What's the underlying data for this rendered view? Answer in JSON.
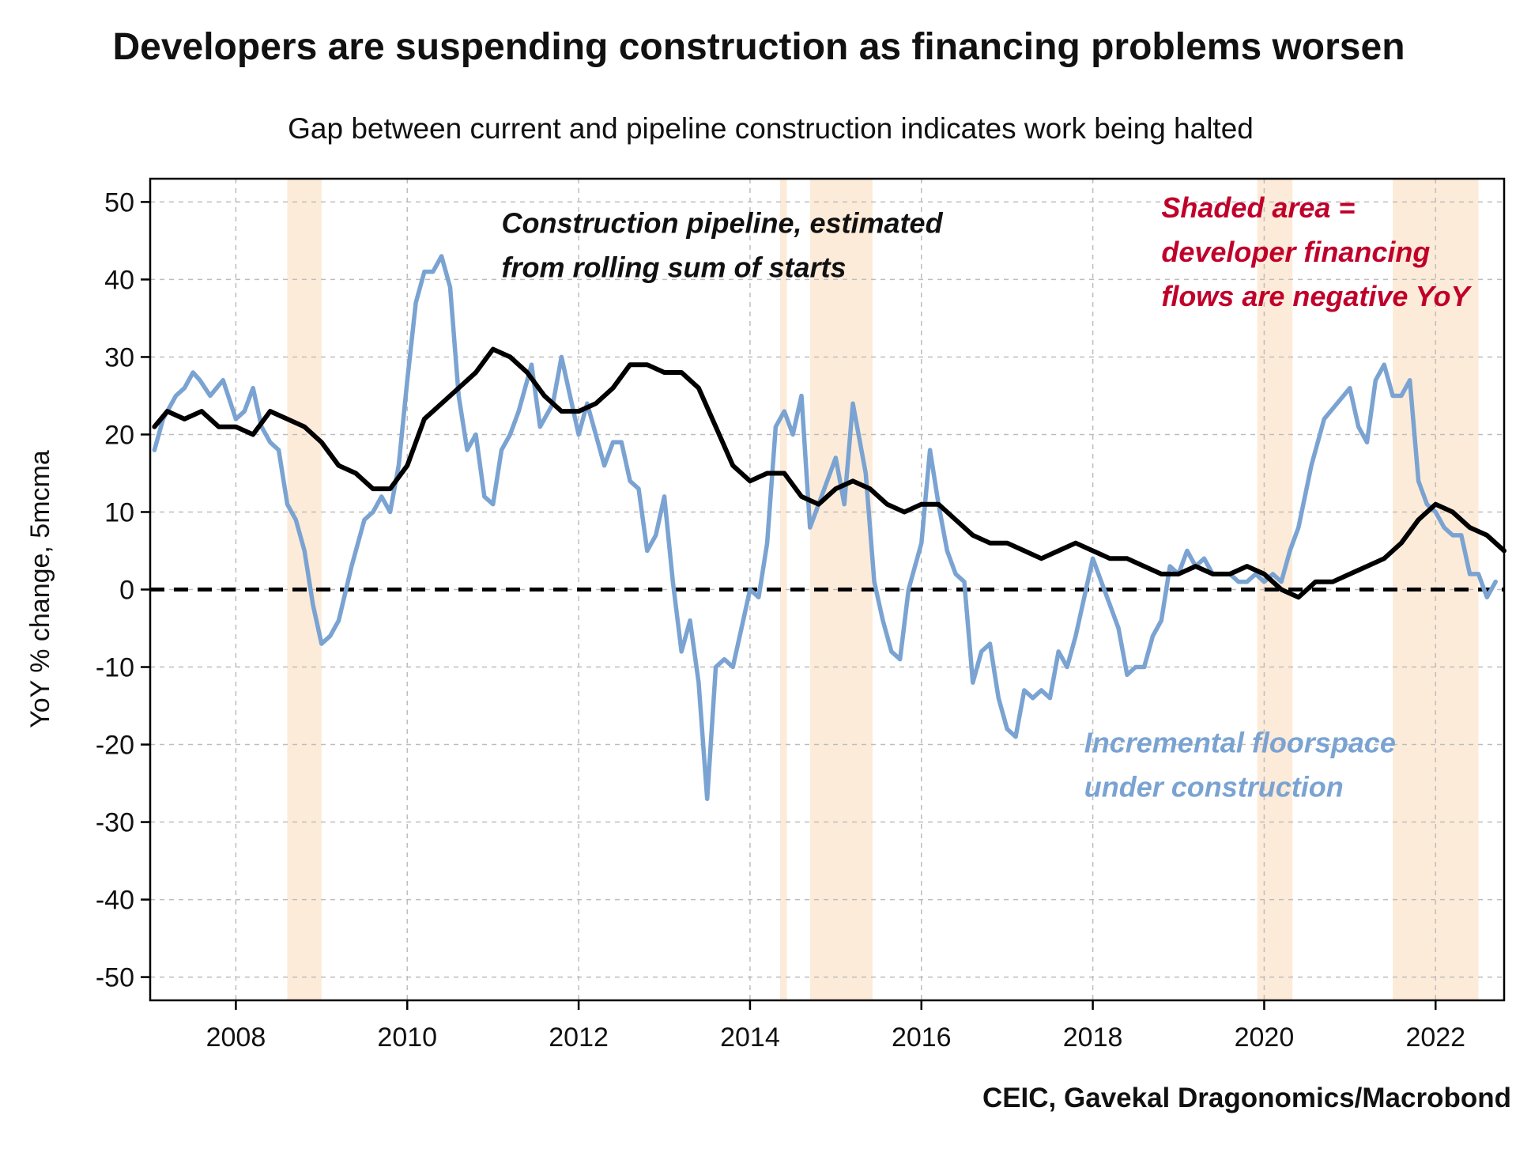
{
  "chart_data": {
    "type": "line",
    "title": "Developers are suspending construction as financing problems worsen",
    "subtitle": "Gap between current and pipeline construction indicates work being halted",
    "xlabel": "",
    "ylabel": "YoY % change, 5mcma",
    "source": "CEIC, Gavekal Dragonomics/Macrobond",
    "xlim": [
      2007.0,
      2022.8
    ],
    "ylim": [
      -53,
      53
    ],
    "x_ticks": [
      2008,
      2010,
      2012,
      2014,
      2016,
      2018,
      2020,
      2022
    ],
    "x_tick_labels": [
      "2008",
      "2010",
      "2012",
      "2014",
      "2016",
      "2018",
      "2020",
      "2022"
    ],
    "y_ticks": [
      50,
      40,
      30,
      20,
      10,
      0,
      -10,
      -20,
      -30,
      -40,
      -50
    ],
    "y_tick_labels": [
      "50",
      "40",
      "30",
      "20",
      "10",
      "0",
      "-10",
      "-20",
      "-30",
      "-40",
      "-50"
    ],
    "grid": true,
    "zero_line": true,
    "shaded_periods": [
      [
        2008.6,
        2009.0
      ],
      [
        2014.35,
        2014.43
      ],
      [
        2014.7,
        2015.43
      ],
      [
        2019.92,
        2020.33
      ],
      [
        2021.5,
        2022.5
      ]
    ],
    "series": [
      {
        "name": "Incremental floorspace under construction",
        "color": "#7aa3d2",
        "points": [
          [
            2007.05,
            18
          ],
          [
            2007.15,
            22
          ],
          [
            2007.3,
            25
          ],
          [
            2007.4,
            26
          ],
          [
            2007.5,
            28
          ],
          [
            2007.58,
            27
          ],
          [
            2007.7,
            25
          ],
          [
            2007.85,
            27
          ],
          [
            2008.0,
            22
          ],
          [
            2008.1,
            23
          ],
          [
            2008.2,
            26
          ],
          [
            2008.3,
            21
          ],
          [
            2008.4,
            19
          ],
          [
            2008.5,
            18
          ],
          [
            2008.6,
            11
          ],
          [
            2008.7,
            9
          ],
          [
            2008.8,
            5
          ],
          [
            2008.9,
            -2
          ],
          [
            2009.0,
            -7
          ],
          [
            2009.1,
            -6
          ],
          [
            2009.2,
            -4
          ],
          [
            2009.35,
            3
          ],
          [
            2009.5,
            9
          ],
          [
            2009.6,
            10
          ],
          [
            2009.7,
            12
          ],
          [
            2009.8,
            10
          ],
          [
            2009.9,
            16
          ],
          [
            2010.0,
            27
          ],
          [
            2010.1,
            37
          ],
          [
            2010.2,
            41
          ],
          [
            2010.3,
            41
          ],
          [
            2010.4,
            43
          ],
          [
            2010.5,
            39
          ],
          [
            2010.6,
            25
          ],
          [
            2010.7,
            18
          ],
          [
            2010.8,
            20
          ],
          [
            2010.9,
            12
          ],
          [
            2011.0,
            11
          ],
          [
            2011.1,
            18
          ],
          [
            2011.2,
            20
          ],
          [
            2011.3,
            23
          ],
          [
            2011.45,
            29
          ],
          [
            2011.55,
            21
          ],
          [
            2011.7,
            24
          ],
          [
            2011.8,
            30
          ],
          [
            2011.9,
            25
          ],
          [
            2012.0,
            20
          ],
          [
            2012.1,
            24
          ],
          [
            2012.2,
            20
          ],
          [
            2012.3,
            16
          ],
          [
            2012.4,
            19
          ],
          [
            2012.5,
            19
          ],
          [
            2012.6,
            14
          ],
          [
            2012.7,
            13
          ],
          [
            2012.8,
            5
          ],
          [
            2012.9,
            7
          ],
          [
            2013.0,
            12
          ],
          [
            2013.1,
            1
          ],
          [
            2013.2,
            -8
          ],
          [
            2013.3,
            -4
          ],
          [
            2013.4,
            -12
          ],
          [
            2013.5,
            -27
          ],
          [
            2013.6,
            -10
          ],
          [
            2013.7,
            -9
          ],
          [
            2013.8,
            -10
          ],
          [
            2013.9,
            -5
          ],
          [
            2014.0,
            0
          ],
          [
            2014.1,
            -1
          ],
          [
            2014.2,
            6
          ],
          [
            2014.3,
            21
          ],
          [
            2014.4,
            23
          ],
          [
            2014.5,
            20
          ],
          [
            2014.6,
            25
          ],
          [
            2014.7,
            8
          ],
          [
            2014.8,
            11
          ],
          [
            2014.9,
            14
          ],
          [
            2015.0,
            17
          ],
          [
            2015.1,
            11
          ],
          [
            2015.2,
            24
          ],
          [
            2015.35,
            15
          ],
          [
            2015.45,
            1
          ],
          [
            2015.55,
            -4
          ],
          [
            2015.65,
            -8
          ],
          [
            2015.75,
            -9
          ],
          [
            2015.85,
            0
          ],
          [
            2016.0,
            6
          ],
          [
            2016.1,
            18
          ],
          [
            2016.2,
            11
          ],
          [
            2016.3,
            5
          ],
          [
            2016.4,
            2
          ],
          [
            2016.5,
            1
          ],
          [
            2016.6,
            -12
          ],
          [
            2016.7,
            -8
          ],
          [
            2016.8,
            -7
          ],
          [
            2016.9,
            -14
          ],
          [
            2017.0,
            -18
          ],
          [
            2017.1,
            -19
          ],
          [
            2017.2,
            -13
          ],
          [
            2017.3,
            -14
          ],
          [
            2017.4,
            -13
          ],
          [
            2017.5,
            -14
          ],
          [
            2017.6,
            -8
          ],
          [
            2017.7,
            -10
          ],
          [
            2017.8,
            -6
          ],
          [
            2017.9,
            -1
          ],
          [
            2018.0,
            4
          ],
          [
            2018.1,
            1
          ],
          [
            2018.2,
            -2
          ],
          [
            2018.3,
            -5
          ],
          [
            2018.4,
            -11
          ],
          [
            2018.5,
            -10
          ],
          [
            2018.6,
            -10
          ],
          [
            2018.7,
            -6
          ],
          [
            2018.8,
            -4
          ],
          [
            2018.9,
            3
          ],
          [
            2019.0,
            2
          ],
          [
            2019.1,
            5
          ],
          [
            2019.2,
            3
          ],
          [
            2019.3,
            4
          ],
          [
            2019.4,
            2
          ],
          [
            2019.5,
            2
          ],
          [
            2019.6,
            2
          ],
          [
            2019.7,
            1
          ],
          [
            2019.8,
            1
          ],
          [
            2019.9,
            2
          ],
          [
            2020.0,
            1
          ],
          [
            2020.1,
            2
          ],
          [
            2020.2,
            1
          ],
          [
            2020.3,
            5
          ],
          [
            2020.4,
            8
          ],
          [
            2020.55,
            16
          ],
          [
            2020.7,
            22
          ],
          [
            2020.85,
            24
          ],
          [
            2021.0,
            26
          ],
          [
            2021.1,
            21
          ],
          [
            2021.2,
            19
          ],
          [
            2021.3,
            27
          ],
          [
            2021.4,
            29
          ],
          [
            2021.5,
            25
          ],
          [
            2021.6,
            25
          ],
          [
            2021.7,
            27
          ],
          [
            2021.8,
            14
          ],
          [
            2021.9,
            11
          ],
          [
            2022.0,
            10
          ],
          [
            2022.1,
            8
          ],
          [
            2022.2,
            7
          ],
          [
            2022.3,
            7
          ],
          [
            2022.4,
            2
          ],
          [
            2022.5,
            2
          ],
          [
            2022.6,
            -1
          ],
          [
            2022.7,
            1
          ]
        ]
      },
      {
        "name": "Construction pipeline, estimated from rolling sum of starts",
        "color": "#000000",
        "points": [
          [
            2007.05,
            21
          ],
          [
            2007.2,
            23
          ],
          [
            2007.4,
            22
          ],
          [
            2007.6,
            23
          ],
          [
            2007.8,
            21
          ],
          [
            2008.0,
            21
          ],
          [
            2008.2,
            20
          ],
          [
            2008.4,
            23
          ],
          [
            2008.6,
            22
          ],
          [
            2008.8,
            21
          ],
          [
            2009.0,
            19
          ],
          [
            2009.2,
            16
          ],
          [
            2009.4,
            15
          ],
          [
            2009.5,
            14
          ],
          [
            2009.6,
            13
          ],
          [
            2009.8,
            13
          ],
          [
            2010.0,
            16
          ],
          [
            2010.2,
            22
          ],
          [
            2010.4,
            24
          ],
          [
            2010.6,
            26
          ],
          [
            2010.8,
            28
          ],
          [
            2011.0,
            31
          ],
          [
            2011.2,
            30
          ],
          [
            2011.4,
            28
          ],
          [
            2011.6,
            25
          ],
          [
            2011.8,
            23
          ],
          [
            2012.0,
            23
          ],
          [
            2012.2,
            24
          ],
          [
            2012.4,
            26
          ],
          [
            2012.6,
            29
          ],
          [
            2012.8,
            29
          ],
          [
            2013.0,
            28
          ],
          [
            2013.2,
            28
          ],
          [
            2013.4,
            26
          ],
          [
            2013.6,
            21
          ],
          [
            2013.8,
            16
          ],
          [
            2014.0,
            14
          ],
          [
            2014.2,
            15
          ],
          [
            2014.4,
            15
          ],
          [
            2014.6,
            12
          ],
          [
            2014.8,
            11
          ],
          [
            2015.0,
            13
          ],
          [
            2015.2,
            14
          ],
          [
            2015.4,
            13
          ],
          [
            2015.6,
            11
          ],
          [
            2015.8,
            10
          ],
          [
            2016.0,
            11
          ],
          [
            2016.2,
            11
          ],
          [
            2016.4,
            9
          ],
          [
            2016.6,
            7
          ],
          [
            2016.8,
            6
          ],
          [
            2017.0,
            6
          ],
          [
            2017.2,
            5
          ],
          [
            2017.4,
            4
          ],
          [
            2017.6,
            5
          ],
          [
            2017.8,
            6
          ],
          [
            2018.0,
            5
          ],
          [
            2018.2,
            4
          ],
          [
            2018.4,
            4
          ],
          [
            2018.6,
            3
          ],
          [
            2018.8,
            2
          ],
          [
            2019.0,
            2
          ],
          [
            2019.2,
            3
          ],
          [
            2019.4,
            2
          ],
          [
            2019.6,
            2
          ],
          [
            2019.8,
            3
          ],
          [
            2020.0,
            2
          ],
          [
            2020.2,
            0
          ],
          [
            2020.4,
            -1
          ],
          [
            2020.6,
            1
          ],
          [
            2020.8,
            1
          ],
          [
            2021.0,
            2
          ],
          [
            2021.2,
            3
          ],
          [
            2021.4,
            4
          ],
          [
            2021.6,
            6
          ],
          [
            2021.8,
            9
          ],
          [
            2022.0,
            11
          ],
          [
            2022.2,
            10
          ],
          [
            2022.4,
            8
          ],
          [
            2022.6,
            7
          ],
          [
            2022.8,
            5
          ]
        ]
      }
    ],
    "annotations": [
      {
        "lines": [
          "Construction pipeline, estimated",
          "from rolling sum of starts"
        ],
        "color": "#111111",
        "x": 2011.1,
        "y": 46,
        "anchor": "start"
      },
      {
        "lines": [
          "Shaded area =",
          "developer financing",
          "flows are negative YoY"
        ],
        "color": "#c0002a",
        "x": 2018.8,
        "y": 48,
        "anchor": "start"
      },
      {
        "lines": [
          "Incremental floorspace",
          "under construction"
        ],
        "color": "#7aa3d2",
        "x": 2017.9,
        "y": -21,
        "anchor": "start"
      }
    ]
  }
}
